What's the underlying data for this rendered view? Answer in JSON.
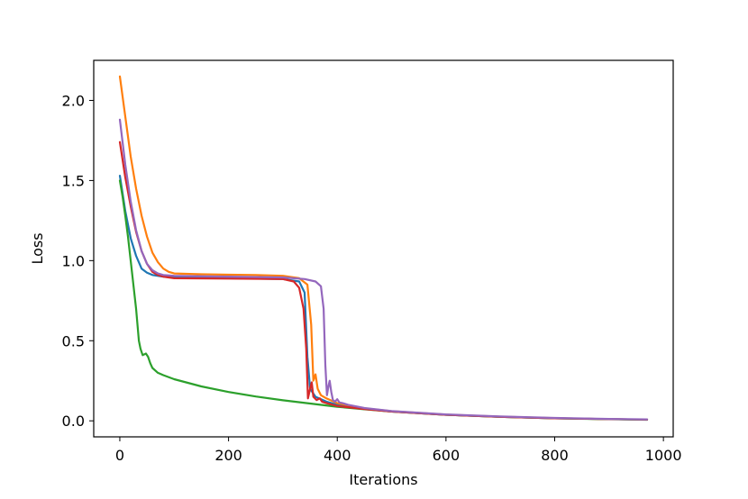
{
  "chart_data": {
    "type": "line",
    "xlabel": "Iterations",
    "ylabel": "Loss",
    "xlim": [
      -48,
      1018
    ],
    "ylim": [
      -0.1,
      2.25
    ],
    "xticks": [
      0,
      200,
      400,
      600,
      800,
      1000
    ],
    "yticks": [
      0.0,
      0.5,
      1.0,
      1.5,
      2.0
    ],
    "xtick_labels": [
      "0",
      "200",
      "400",
      "600",
      "800",
      "1000"
    ],
    "ytick_labels": [
      "0.0",
      "0.5",
      "1.0",
      "1.5",
      "2.0"
    ],
    "grid": false,
    "legend": "none",
    "series": [
      {
        "color": "#1f77b4",
        "points": [
          [
            0,
            1.53
          ],
          [
            5,
            1.42
          ],
          [
            10,
            1.31
          ],
          [
            20,
            1.14
          ],
          [
            30,
            1.03
          ],
          [
            40,
            0.95
          ],
          [
            50,
            0.925
          ],
          [
            60,
            0.91
          ],
          [
            80,
            0.9
          ],
          [
            100,
            0.895
          ],
          [
            200,
            0.89
          ],
          [
            300,
            0.885
          ],
          [
            330,
            0.87
          ],
          [
            340,
            0.8
          ],
          [
            345,
            0.4
          ],
          [
            350,
            0.2
          ],
          [
            360,
            0.15
          ],
          [
            380,
            0.12
          ],
          [
            400,
            0.1
          ],
          [
            450,
            0.075
          ],
          [
            500,
            0.058
          ],
          [
            600,
            0.038
          ],
          [
            700,
            0.025
          ],
          [
            800,
            0.016
          ],
          [
            900,
            0.011
          ],
          [
            970,
            0.008
          ]
        ]
      },
      {
        "color": "#ff7f0e",
        "points": [
          [
            0,
            2.15
          ],
          [
            10,
            1.9
          ],
          [
            20,
            1.65
          ],
          [
            30,
            1.45
          ],
          [
            40,
            1.28
          ],
          [
            50,
            1.15
          ],
          [
            60,
            1.05
          ],
          [
            70,
            0.99
          ],
          [
            80,
            0.95
          ],
          [
            90,
            0.93
          ],
          [
            100,
            0.92
          ],
          [
            150,
            0.915
          ],
          [
            200,
            0.912
          ],
          [
            250,
            0.91
          ],
          [
            300,
            0.905
          ],
          [
            330,
            0.89
          ],
          [
            345,
            0.85
          ],
          [
            352,
            0.6
          ],
          [
            356,
            0.25
          ],
          [
            360,
            0.29
          ],
          [
            364,
            0.2
          ],
          [
            370,
            0.16
          ],
          [
            380,
            0.14
          ],
          [
            400,
            0.11
          ],
          [
            450,
            0.078
          ],
          [
            500,
            0.06
          ],
          [
            600,
            0.039
          ],
          [
            700,
            0.026
          ],
          [
            800,
            0.017
          ],
          [
            900,
            0.011
          ],
          [
            970,
            0.008
          ]
        ]
      },
      {
        "color": "#2ca02c",
        "points": [
          [
            0,
            1.5
          ],
          [
            5,
            1.4
          ],
          [
            10,
            1.28
          ],
          [
            15,
            1.15
          ],
          [
            20,
            1.0
          ],
          [
            25,
            0.85
          ],
          [
            30,
            0.7
          ],
          [
            35,
            0.5
          ],
          [
            38,
            0.45
          ],
          [
            42,
            0.41
          ],
          [
            48,
            0.42
          ],
          [
            52,
            0.4
          ],
          [
            56,
            0.36
          ],
          [
            60,
            0.33
          ],
          [
            70,
            0.3
          ],
          [
            80,
            0.285
          ],
          [
            100,
            0.26
          ],
          [
            150,
            0.215
          ],
          [
            200,
            0.18
          ],
          [
            250,
            0.152
          ],
          [
            300,
            0.128
          ],
          [
            350,
            0.108
          ],
          [
            400,
            0.088
          ],
          [
            450,
            0.072
          ],
          [
            500,
            0.058
          ],
          [
            600,
            0.038
          ],
          [
            700,
            0.025
          ],
          [
            800,
            0.016
          ],
          [
            900,
            0.01
          ],
          [
            970,
            0.007
          ]
        ]
      },
      {
        "color": "#d62728",
        "points": [
          [
            0,
            1.74
          ],
          [
            10,
            1.52
          ],
          [
            20,
            1.34
          ],
          [
            30,
            1.18
          ],
          [
            40,
            1.06
          ],
          [
            50,
            0.98
          ],
          [
            60,
            0.93
          ],
          [
            70,
            0.91
          ],
          [
            80,
            0.9
          ],
          [
            90,
            0.895
          ],
          [
            100,
            0.89
          ],
          [
            200,
            0.888
          ],
          [
            300,
            0.885
          ],
          [
            320,
            0.87
          ],
          [
            330,
            0.83
          ],
          [
            338,
            0.7
          ],
          [
            343,
            0.45
          ],
          [
            346,
            0.14
          ],
          [
            350,
            0.2
          ],
          [
            353,
            0.24
          ],
          [
            356,
            0.15
          ],
          [
            362,
            0.13
          ],
          [
            368,
            0.14
          ],
          [
            372,
            0.12
          ],
          [
            380,
            0.11
          ],
          [
            400,
            0.092
          ],
          [
            450,
            0.074
          ],
          [
            500,
            0.058
          ],
          [
            600,
            0.038
          ],
          [
            700,
            0.025
          ],
          [
            800,
            0.016
          ],
          [
            900,
            0.011
          ],
          [
            970,
            0.008
          ]
        ]
      },
      {
        "color": "#9467bd",
        "points": [
          [
            0,
            1.88
          ],
          [
            10,
            1.6
          ],
          [
            20,
            1.37
          ],
          [
            30,
            1.19
          ],
          [
            40,
            1.06
          ],
          [
            50,
            0.98
          ],
          [
            60,
            0.94
          ],
          [
            70,
            0.92
          ],
          [
            80,
            0.91
          ],
          [
            100,
            0.905
          ],
          [
            200,
            0.9
          ],
          [
            300,
            0.895
          ],
          [
            340,
            0.885
          ],
          [
            360,
            0.87
          ],
          [
            370,
            0.84
          ],
          [
            375,
            0.7
          ],
          [
            378,
            0.35
          ],
          [
            381,
            0.16
          ],
          [
            384,
            0.22
          ],
          [
            386,
            0.25
          ],
          [
            389,
            0.18
          ],
          [
            392,
            0.13
          ],
          [
            396,
            0.12
          ],
          [
            400,
            0.135
          ],
          [
            404,
            0.115
          ],
          [
            410,
            0.11
          ],
          [
            420,
            0.1
          ],
          [
            450,
            0.08
          ],
          [
            500,
            0.061
          ],
          [
            600,
            0.04
          ],
          [
            700,
            0.027
          ],
          [
            800,
            0.018
          ],
          [
            900,
            0.012
          ],
          [
            970,
            0.009
          ]
        ]
      }
    ]
  }
}
